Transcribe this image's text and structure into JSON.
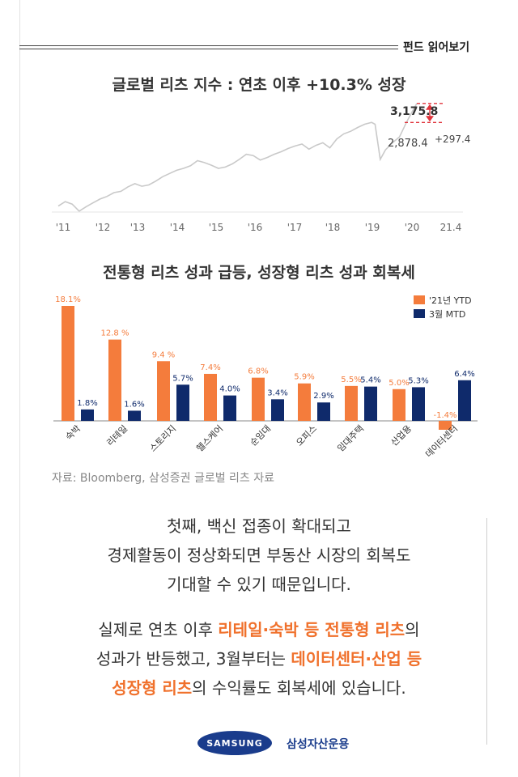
{
  "header": {
    "tag": "펀드 읽어보기"
  },
  "chart_data": [
    {
      "type": "line",
      "title": "글로벌 리츠 지수 : 연초 이후 +10.3% 성장",
      "x_tick_labels": [
        "'11",
        "'12",
        "'13",
        "'14",
        "'15",
        "'16",
        "'17",
        "'18",
        "'19",
        "'20",
        "21.4"
      ],
      "x": [
        2011.0,
        2011.2,
        2011.4,
        2011.6,
        2011.8,
        2012.0,
        2012.2,
        2012.4,
        2012.6,
        2012.8,
        2013.0,
        2013.2,
        2013.4,
        2013.6,
        2013.8,
        2014.0,
        2014.2,
        2014.4,
        2014.6,
        2014.8,
        2015.0,
        2015.2,
        2015.4,
        2015.6,
        2015.8,
        2016.0,
        2016.2,
        2016.4,
        2016.6,
        2016.8,
        2017.0,
        2017.2,
        2017.4,
        2017.6,
        2017.8,
        2018.0,
        2018.2,
        2018.4,
        2018.6,
        2018.8,
        2019.0,
        2019.2,
        2019.4,
        2019.6,
        2019.8,
        2020.0,
        2020.1,
        2020.25,
        2020.4,
        2020.6,
        2020.8,
        2021.0,
        2021.1,
        2021.2,
        2021.3
      ],
      "y": [
        1570,
        1640,
        1600,
        1490,
        1560,
        1620,
        1680,
        1720,
        1780,
        1800,
        1870,
        1920,
        1880,
        1900,
        1960,
        2030,
        2080,
        2130,
        2160,
        2200,
        2280,
        2250,
        2210,
        2160,
        2180,
        2230,
        2300,
        2380,
        2360,
        2290,
        2330,
        2380,
        2420,
        2470,
        2510,
        2540,
        2460,
        2520,
        2560,
        2480,
        2620,
        2700,
        2740,
        2800,
        2850,
        2880,
        2850,
        2300,
        2450,
        2560,
        2650,
        2878.4,
        2980,
        3080,
        3175.8
      ],
      "annotations": [
        {
          "label": "3,175.8",
          "value": 3175.8
        },
        {
          "label": "2,878.4",
          "value": 2878.4
        },
        {
          "label": "+297.4",
          "value": 297.4
        }
      ],
      "ylim": [
        1400,
        3300
      ],
      "line_color": "#c9c9c9"
    },
    {
      "type": "bar",
      "title": "전통형 리츠 성과 급등, 성장형 리츠 성과 회복세",
      "categories": [
        "숙박",
        "리테일",
        "스토리지",
        "헬스케어",
        "순임대",
        "오피스",
        "임대주택",
        "산업용",
        "데이터센터"
      ],
      "series": [
        {
          "name": "'21년 YTD",
          "color": "#f47c3c",
          "values": [
            18.1,
            12.8,
            9.4,
            7.4,
            6.8,
            5.9,
            5.5,
            5.0,
            -1.4
          ],
          "labels": [
            "18.1%",
            "12.8 %",
            "9.4 %",
            "7.4%",
            "6.8%",
            "5.9%",
            "5.5%",
            "5.0%",
            "-1.4%"
          ]
        },
        {
          "name": "3월 MTD",
          "color": "#0f2a6b",
          "values": [
            1.8,
            1.6,
            5.7,
            4.0,
            3.4,
            2.9,
            5.4,
            5.3,
            6.4
          ],
          "labels": [
            "1.8%",
            "1.6%",
            "5.7%",
            "4.0%",
            "3.4%",
            "2.9%",
            "5.4%",
            "5.3%",
            "6.4%"
          ]
        }
      ],
      "ylim": [
        -2,
        19
      ],
      "legend_position": "top-right"
    }
  ],
  "source": "자료: Bloomberg, 삼성증권 글로벌 리츠 자료",
  "para1": {
    "line1": "첫째, 백신 접종이 확대되고",
    "line2": "경제활동이 정상화되면 부동산 시장의 회복도",
    "line3": "기대할 수 있기 때문입니다."
  },
  "para2": {
    "l1a": "실제로 연초 이후 ",
    "l1b": "리테일·숙박 등 전통형 리츠",
    "l1c": "의",
    "l2a": "성과가 반등했고, 3월부터는 ",
    "l2b": "데이터센터·산업 등",
    "l3a": "성장형 리츠",
    "l3b": "의 수익률도 회복세에 있습니다."
  },
  "footer": {
    "logo_text": "SAMSUNG",
    "company": "삼성자산운용"
  }
}
